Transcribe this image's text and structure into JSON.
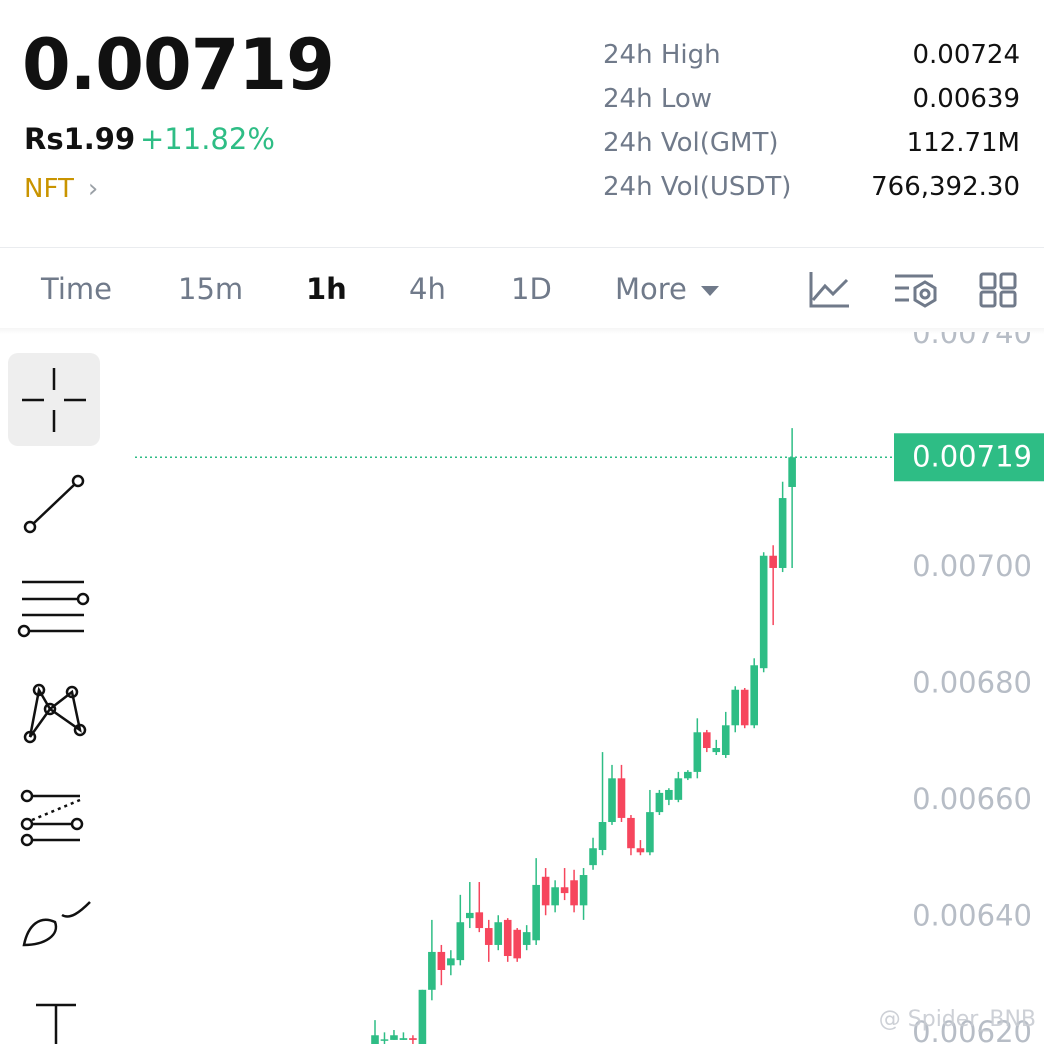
{
  "header": {
    "price": "0.00719",
    "fiat": "Rs1.99",
    "change": "+11.82%",
    "tag": "NFT"
  },
  "stats": [
    {
      "label": "24h High",
      "value": "0.00724"
    },
    {
      "label": "24h Low",
      "value": "0.00639"
    },
    {
      "label": "24h Vol(GMT)",
      "value": "112.71M"
    },
    {
      "label": "24h Vol(USDT)",
      "value": "766,392.30"
    }
  ],
  "tabs": [
    "Time",
    "15m",
    "1h",
    "4h",
    "1D",
    "More"
  ],
  "active_tab": 2,
  "watermark": "@ Spider_BNB",
  "chart_data": {
    "type": "candlestick",
    "up_color": "#2ebd85",
    "down_color": "#f6465d",
    "ylim": [
      0.006183,
      0.007405
    ],
    "yticks": [
      {
        "value": 0.0074,
        "label": "0.00740"
      },
      {
        "value": 0.007,
        "label": "0.00700"
      },
      {
        "value": 0.0068,
        "label": "0.00680"
      },
      {
        "value": 0.0066,
        "label": "0.00660"
      },
      {
        "value": 0.0064,
        "label": "0.00640"
      },
      {
        "value": 0.0062,
        "label": "0.00620"
      }
    ],
    "current_price": 0.00719,
    "candles": {
      "open": [
        0.006183,
        0.00619,
        0.00619,
        0.00619,
        0.006193,
        0.006183,
        0.006276,
        0.006341,
        0.006318,
        0.006327,
        0.006399,
        0.006409,
        0.006382,
        0.006353,
        0.006396,
        0.006379,
        0.006353,
        0.006361,
        0.00647,
        0.006421,
        0.006452,
        0.006464,
        0.006421,
        0.00649,
        0.006516,
        0.006564,
        0.006639,
        0.006571,
        0.006519,
        0.006512,
        0.006581,
        0.006602,
        0.006602,
        0.006639,
        0.00665,
        0.006718,
        0.006684,
        0.006679,
        0.00673,
        0.006791,
        0.00673,
        0.006828,
        0.007021,
        0.007,
        0.007139
      ],
      "close": [
        0.006198,
        0.006191,
        0.006198,
        0.006193,
        0.00619,
        0.006276,
        0.006341,
        0.00631,
        0.00633,
        0.006392,
        0.006408,
        0.006382,
        0.006353,
        0.006392,
        0.006334,
        0.00633,
        0.006375,
        0.006456,
        0.006421,
        0.006452,
        0.006442,
        0.006421,
        0.006473,
        0.006519,
        0.006564,
        0.006639,
        0.006571,
        0.006519,
        0.006512,
        0.006581,
        0.006614,
        0.006619,
        0.006639,
        0.00665,
        0.006718,
        0.006691,
        0.006691,
        0.00673,
        0.006791,
        0.00673,
        0.006833,
        0.007021,
        0.007,
        0.00712,
        0.00719
      ],
      "high": [
        0.006224,
        0.006203,
        0.006207,
        0.006203,
        0.006198,
        0.006276,
        0.006396,
        0.006353,
        0.006344,
        0.006439,
        0.006461,
        0.006461,
        0.006396,
        0.006404,
        0.006399,
        0.006382,
        0.006387,
        0.006502,
        0.006485,
        0.006464,
        0.006485,
        0.006482,
        0.006485,
        0.006537,
        0.006684,
        0.006662,
        0.006662,
        0.006576,
        0.006533,
        0.006619,
        0.006619,
        0.006622,
        0.00665,
        0.006653,
        0.006742,
        0.006722,
        0.006705,
        0.006753,
        0.006797,
        0.006794,
        0.006845,
        0.007027,
        0.007039,
        0.007148,
        0.00724
      ],
      "low": [
        0.006183,
        0.006183,
        0.00619,
        0.00619,
        0.006183,
        0.006183,
        0.006258,
        0.006284,
        0.006301,
        0.006318,
        0.006382,
        0.006375,
        0.006324,
        0.006344,
        0.006324,
        0.006324,
        0.006344,
        0.006353,
        0.006404,
        0.006409,
        0.00643,
        0.006409,
        0.006396,
        0.006482,
        0.006507,
        0.006559,
        0.006564,
        0.006507,
        0.006507,
        0.006507,
        0.006576,
        0.006593,
        0.006598,
        0.006636,
        0.006639,
        0.006684,
        0.006679,
        0.006674,
        0.006718,
        0.006725,
        0.006725,
        0.006821,
        0.006902,
        0.006993,
        0.007
      ]
    }
  }
}
